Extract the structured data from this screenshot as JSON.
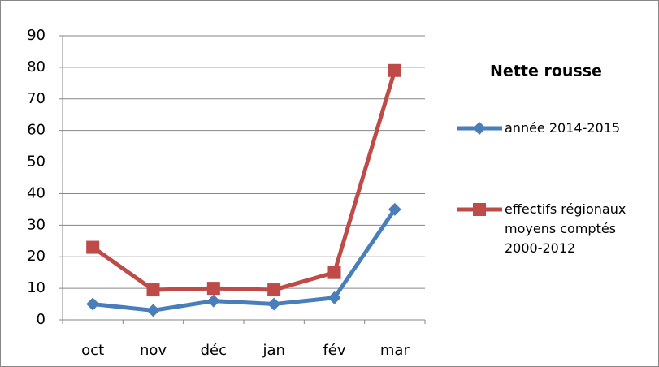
{
  "chart_data": {
    "type": "line",
    "title": "Nette rousse",
    "categories": [
      "oct",
      "nov",
      "déc",
      "jan",
      "fév",
      "mar"
    ],
    "series": [
      {
        "name": "année 2014-2015",
        "color": "#4a7ebb",
        "marker": "diamond",
        "values": [
          5,
          3,
          6,
          5,
          7,
          35
        ]
      },
      {
        "name": "effectifs régionaux moyens comptés 2000-2012",
        "color": "#be4b48",
        "marker": "square",
        "values": [
          23,
          9.5,
          10,
          9.5,
          15,
          79
        ]
      }
    ],
    "ylim": [
      0,
      90
    ],
    "yticks": [
      0,
      10,
      20,
      30,
      40,
      50,
      60,
      70,
      80,
      90
    ],
    "grid": true,
    "legend": "right"
  }
}
